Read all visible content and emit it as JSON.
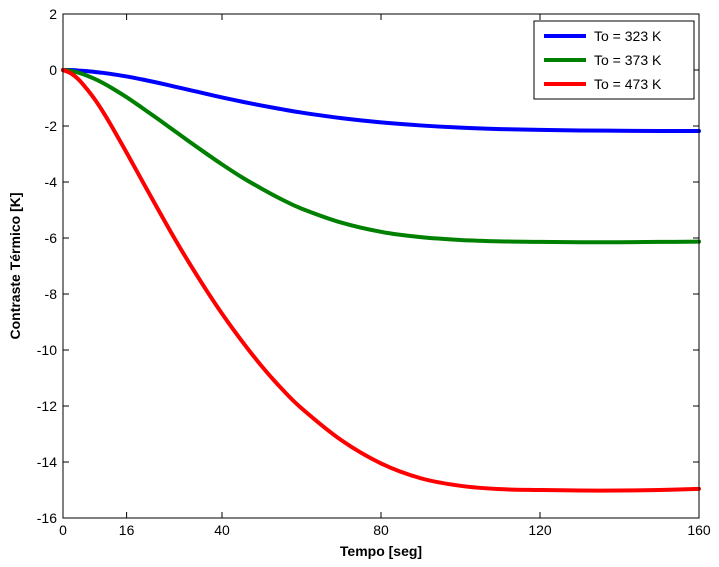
{
  "chart_data": {
    "type": "line",
    "xlabel": "Tempo [seg]",
    "ylabel": "Contraste Térmico [K]",
    "xlim": [
      0,
      160
    ],
    "ylim": [
      -16,
      2
    ],
    "xticks": [
      0,
      16,
      40,
      80,
      120,
      160
    ],
    "yticks": [
      2,
      0,
      -2,
      -4,
      -6,
      -8,
      -10,
      -12,
      -14,
      -16
    ],
    "grid": false,
    "legend_position": "top-right",
    "x": [
      0,
      2,
      4,
      6,
      8,
      10,
      12,
      16,
      20,
      24,
      28,
      32,
      36,
      40,
      45,
      50,
      55,
      60,
      70,
      80,
      90,
      100,
      110,
      120,
      130,
      140,
      150,
      160
    ],
    "series": [
      {
        "name": "To = 323 K",
        "color": "#0000ff",
        "values": [
          0,
          0,
          -0.02,
          -0.04,
          -0.07,
          -0.1,
          -0.14,
          -0.23,
          -0.34,
          -0.46,
          -0.59,
          -0.72,
          -0.85,
          -0.98,
          -1.13,
          -1.27,
          -1.4,
          -1.52,
          -1.72,
          -1.87,
          -1.98,
          -2.06,
          -2.11,
          -2.14,
          -2.16,
          -2.17,
          -2.18,
          -2.18
        ]
      },
      {
        "name": "To = 373 K",
        "color": "#008000",
        "values": [
          0,
          -0.03,
          -0.1,
          -0.2,
          -0.32,
          -0.46,
          -0.62,
          -0.97,
          -1.36,
          -1.76,
          -2.17,
          -2.58,
          -2.98,
          -3.37,
          -3.83,
          -4.24,
          -4.62,
          -4.95,
          -5.45,
          -5.78,
          -5.97,
          -6.07,
          -6.12,
          -6.14,
          -6.15,
          -6.15,
          -6.14,
          -6.13
        ]
      },
      {
        "name": "To = 473 K",
        "color": "#ff0000",
        "values": [
          0,
          -0.12,
          -0.35,
          -0.68,
          -1.05,
          -1.48,
          -1.95,
          -2.95,
          -3.98,
          -5.0,
          -6.0,
          -6.95,
          -7.85,
          -8.7,
          -9.68,
          -10.58,
          -11.38,
          -12.08,
          -13.22,
          -14.05,
          -14.58,
          -14.85,
          -14.97,
          -15.0,
          -15.02,
          -15.02,
          -15.0,
          -14.96
        ]
      }
    ]
  }
}
